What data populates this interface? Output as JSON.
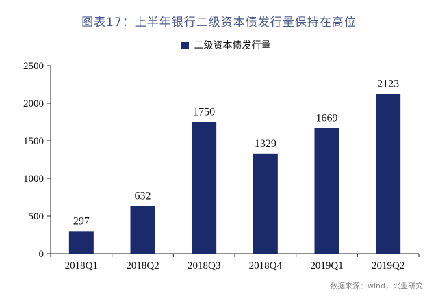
{
  "chart_data": {
    "type": "bar",
    "title": "图表17：上半年银行二级资本债发行量保持在高位",
    "categories": [
      "2018Q1",
      "2018Q2",
      "2018Q3",
      "2018Q4",
      "2019Q1",
      "2019Q2"
    ],
    "series": [
      {
        "name": "二级资本债发行量",
        "values": [
          297,
          632,
          1750,
          1329,
          1669,
          2123
        ]
      }
    ],
    "ylim": [
      0,
      2500
    ],
    "yticks": [
      0,
      500,
      1000,
      1500,
      2000,
      2500
    ],
    "grid": false,
    "legend_position": "top",
    "bar_color": "#1b2a6b"
  },
  "source_note": "数据来源：wind，兴业研究"
}
